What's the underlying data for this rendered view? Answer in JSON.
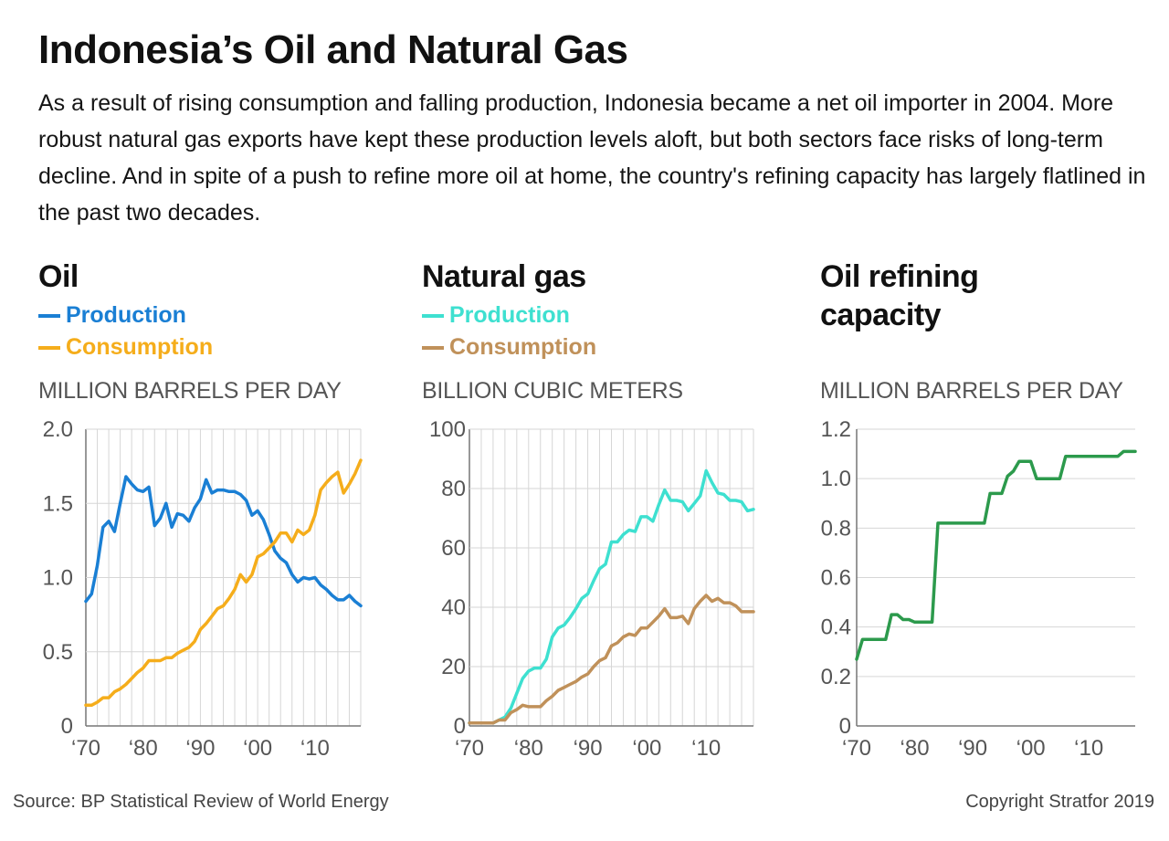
{
  "title": "Indonesia’s Oil and Natural Gas",
  "subtitle": "As a result of rising consumption and falling production, Indonesia became a net oil importer in 2004. More robust natural gas exports have kept these production levels aloft, but both sectors face risks of long-term decline. And in spite of a push to refine more oil at home, the country's refining capacity has largely flatlined in the past two decades.",
  "source": "Source: BP Statistical Review of World Energy",
  "copyright": "Copyright Stratfor 2019",
  "chart_data": [
    {
      "type": "line",
      "title": "Oil",
      "ylabel": "MILLION BARRELS PER DAY",
      "xlim": [
        1970,
        2018
      ],
      "ylim": [
        0,
        2.0
      ],
      "yticks": [
        0,
        0.5,
        1.0,
        1.5,
        2.0
      ],
      "ytick_labels": [
        "0",
        "0.5",
        "1.0",
        "1.5",
        "2.0"
      ],
      "xticks": [
        1970,
        1980,
        1990,
        2000,
        2010
      ],
      "xtick_labels": [
        "‘70",
        "‘80",
        "‘90",
        "‘00",
        "‘10"
      ],
      "grid": "vertical",
      "legend_position": "top-left",
      "series": [
        {
          "name": "Production",
          "color": "#1a7fd4",
          "x": [
            1970,
            1971,
            1972,
            1973,
            1974,
            1975,
            1976,
            1977,
            1978,
            1979,
            1980,
            1981,
            1982,
            1983,
            1984,
            1985,
            1986,
            1987,
            1988,
            1989,
            1990,
            1991,
            1992,
            1993,
            1994,
            1995,
            1996,
            1997,
            1998,
            1999,
            2000,
            2001,
            2002,
            2003,
            2004,
            2005,
            2006,
            2007,
            2008,
            2009,
            2010,
            2011,
            2012,
            2013,
            2014,
            2015,
            2016,
            2017,
            2018
          ],
          "values": [
            0.84,
            0.89,
            1.08,
            1.34,
            1.38,
            1.31,
            1.5,
            1.68,
            1.63,
            1.59,
            1.58,
            1.61,
            1.35,
            1.4,
            1.5,
            1.34,
            1.43,
            1.42,
            1.38,
            1.47,
            1.53,
            1.66,
            1.57,
            1.59,
            1.59,
            1.58,
            1.58,
            1.56,
            1.52,
            1.42,
            1.45,
            1.39,
            1.29,
            1.18,
            1.13,
            1.1,
            1.02,
            0.97,
            1.0,
            0.99,
            1.0,
            0.95,
            0.92,
            0.88,
            0.85,
            0.85,
            0.88,
            0.84,
            0.81
          ]
        },
        {
          "name": "Consumption",
          "color": "#f5ad1b",
          "x": [
            1970,
            1971,
            1972,
            1973,
            1974,
            1975,
            1976,
            1977,
            1978,
            1979,
            1980,
            1981,
            1982,
            1983,
            1984,
            1985,
            1986,
            1987,
            1988,
            1989,
            1990,
            1991,
            1992,
            1993,
            1994,
            1995,
            1996,
            1997,
            1998,
            1999,
            2000,
            2001,
            2002,
            2003,
            2004,
            2005,
            2006,
            2007,
            2008,
            2009,
            2010,
            2011,
            2012,
            2013,
            2014,
            2015,
            2016,
            2017,
            2018
          ],
          "values": [
            0.14,
            0.14,
            0.16,
            0.19,
            0.19,
            0.23,
            0.25,
            0.28,
            0.32,
            0.36,
            0.39,
            0.44,
            0.44,
            0.44,
            0.46,
            0.46,
            0.49,
            0.51,
            0.53,
            0.57,
            0.65,
            0.69,
            0.74,
            0.79,
            0.81,
            0.86,
            0.92,
            1.02,
            0.97,
            1.02,
            1.14,
            1.16,
            1.2,
            1.24,
            1.3,
            1.3,
            1.24,
            1.32,
            1.29,
            1.32,
            1.42,
            1.59,
            1.64,
            1.68,
            1.71,
            1.57,
            1.63,
            1.7,
            1.79
          ]
        }
      ]
    },
    {
      "type": "line",
      "title": "Natural gas",
      "ylabel": "BILLION CUBIC METERS",
      "xlim": [
        1970,
        2018
      ],
      "ylim": [
        0,
        100
      ],
      "yticks": [
        0,
        20,
        40,
        60,
        80,
        100
      ],
      "ytick_labels": [
        "0",
        "20",
        "40",
        "60",
        "80",
        "100"
      ],
      "xticks": [
        1970,
        1980,
        1990,
        2000,
        2010
      ],
      "xtick_labels": [
        "‘70",
        "‘80",
        "‘90",
        "‘00",
        "‘10"
      ],
      "grid": "vertical",
      "legend_position": "top-left",
      "series": [
        {
          "name": "Production",
          "color": "#3ee0d0",
          "x": [
            1970,
            1971,
            1972,
            1973,
            1974,
            1975,
            1976,
            1977,
            1978,
            1979,
            1980,
            1981,
            1982,
            1983,
            1984,
            1985,
            1986,
            1987,
            1988,
            1989,
            1990,
            1991,
            1992,
            1993,
            1994,
            1995,
            1996,
            1997,
            1998,
            1999,
            2000,
            2001,
            2002,
            2003,
            2004,
            2005,
            2006,
            2007,
            2008,
            2009,
            2010,
            2011,
            2012,
            2013,
            2014,
            2015,
            2016,
            2017,
            2018
          ],
          "values": [
            1,
            1,
            1,
            1,
            1,
            2,
            3,
            6,
            11,
            16,
            18.5,
            19.5,
            19.5,
            22.5,
            30,
            33,
            34,
            36.5,
            39.5,
            43,
            44.5,
            49,
            53,
            54.5,
            62,
            62,
            64.5,
            66,
            65.5,
            70.5,
            70.5,
            69,
            74.5,
            79.5,
            76,
            76,
            75.5,
            72.5,
            75,
            77.5,
            86,
            82,
            78.5,
            78,
            76,
            76,
            75.5,
            72.5,
            73
          ]
        },
        {
          "name": "Consumption",
          "color": "#c0915a",
          "x": [
            1970,
            1971,
            1972,
            1973,
            1974,
            1975,
            1976,
            1977,
            1978,
            1979,
            1980,
            1981,
            1982,
            1983,
            1984,
            1985,
            1986,
            1987,
            1988,
            1989,
            1990,
            1991,
            1992,
            1993,
            1994,
            1995,
            1996,
            1997,
            1998,
            1999,
            2000,
            2001,
            2002,
            2003,
            2004,
            2005,
            2006,
            2007,
            2008,
            2009,
            2010,
            2011,
            2012,
            2013,
            2014,
            2015,
            2016,
            2017,
            2018
          ],
          "values": [
            1,
            1,
            1,
            1,
            1,
            2,
            2,
            4.5,
            5.5,
            7,
            6.5,
            6.5,
            6.5,
            8.5,
            10,
            12,
            13,
            14,
            15,
            16.5,
            17.5,
            20,
            22,
            23,
            27,
            28,
            30,
            31,
            30.5,
            33,
            33,
            35,
            37,
            39.5,
            36.5,
            36.5,
            37,
            34.5,
            39.5,
            42,
            44,
            42,
            43,
            41.5,
            41.5,
            40.5,
            38.5,
            38.5,
            38.5
          ]
        }
      ]
    },
    {
      "type": "line",
      "title": "Oil refining capacity",
      "ylabel": "MILLION BARRELS PER DAY",
      "xlim": [
        1970,
        2018
      ],
      "ylim": [
        0,
        1.2
      ],
      "yticks": [
        0,
        0.2,
        0.4,
        0.6,
        0.8,
        1.0,
        1.2
      ],
      "ytick_labels": [
        "0",
        "0.2",
        "0.4",
        "0.6",
        "0.8",
        "1.0",
        "1.2"
      ],
      "xticks": [
        1970,
        1980,
        1990,
        2000,
        2010
      ],
      "xtick_labels": [
        "‘70",
        "‘80",
        "‘90",
        "‘00",
        "‘10"
      ],
      "grid": "horizontal",
      "series": [
        {
          "name": "",
          "color": "#2c9a4c",
          "x": [
            1970,
            1971,
            1972,
            1973,
            1974,
            1975,
            1976,
            1977,
            1978,
            1979,
            1980,
            1981,
            1982,
            1983,
            1984,
            1985,
            1986,
            1987,
            1988,
            1989,
            1990,
            1991,
            1992,
            1993,
            1994,
            1995,
            1996,
            1997,
            1998,
            1999,
            2000,
            2001,
            2002,
            2003,
            2004,
            2005,
            2006,
            2007,
            2008,
            2009,
            2010,
            2011,
            2012,
            2013,
            2014,
            2015,
            2016,
            2017,
            2018
          ],
          "values": [
            0.27,
            0.35,
            0.35,
            0.35,
            0.35,
            0.35,
            0.45,
            0.45,
            0.43,
            0.43,
            0.42,
            0.42,
            0.42,
            0.42,
            0.82,
            0.82,
            0.82,
            0.82,
            0.82,
            0.82,
            0.82,
            0.82,
            0.82,
            0.94,
            0.94,
            0.94,
            1.01,
            1.03,
            1.07,
            1.07,
            1.07,
            1.0,
            1.0,
            1.0,
            1.0,
            1.0,
            1.09,
            1.09,
            1.09,
            1.09,
            1.09,
            1.09,
            1.09,
            1.09,
            1.09,
            1.09,
            1.11,
            1.11,
            1.11
          ]
        }
      ]
    }
  ]
}
